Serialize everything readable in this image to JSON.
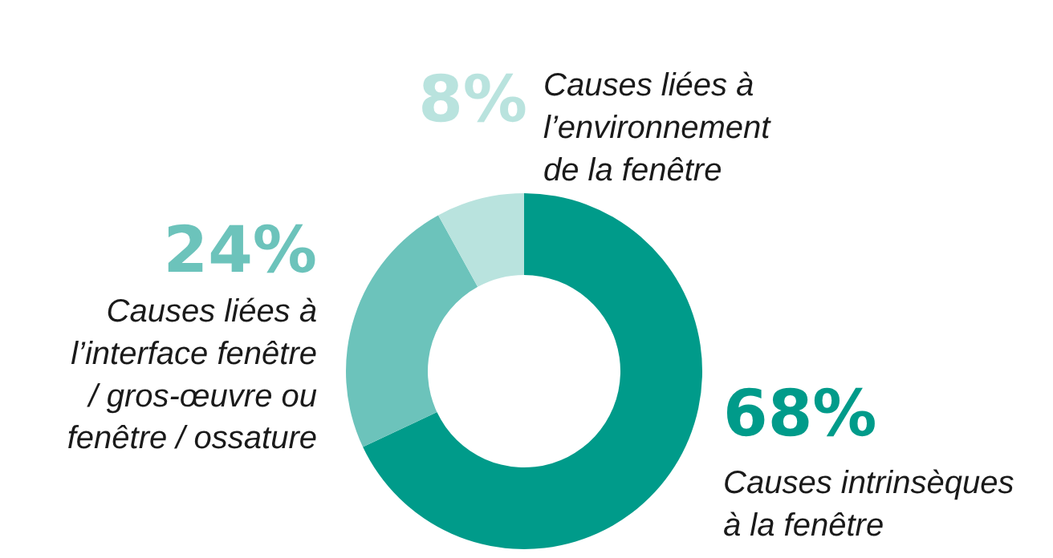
{
  "chart_data": {
    "type": "donut",
    "categories": [
      "Causes intrinsèques\nà la fenêtre",
      "Causes liées à\nl’interface fenêtre\n/ gros-œuvre ou\nfenêtre / ossature",
      "Causes liées à\nl’environnement\nde la fenêtre"
    ],
    "values": [
      68,
      24,
      8
    ],
    "colors": [
      "#009b8a",
      "#6cc3bb",
      "#b9e3de"
    ],
    "value_labels": [
      "68%",
      "24%",
      "8%"
    ],
    "legend": false
  }
}
